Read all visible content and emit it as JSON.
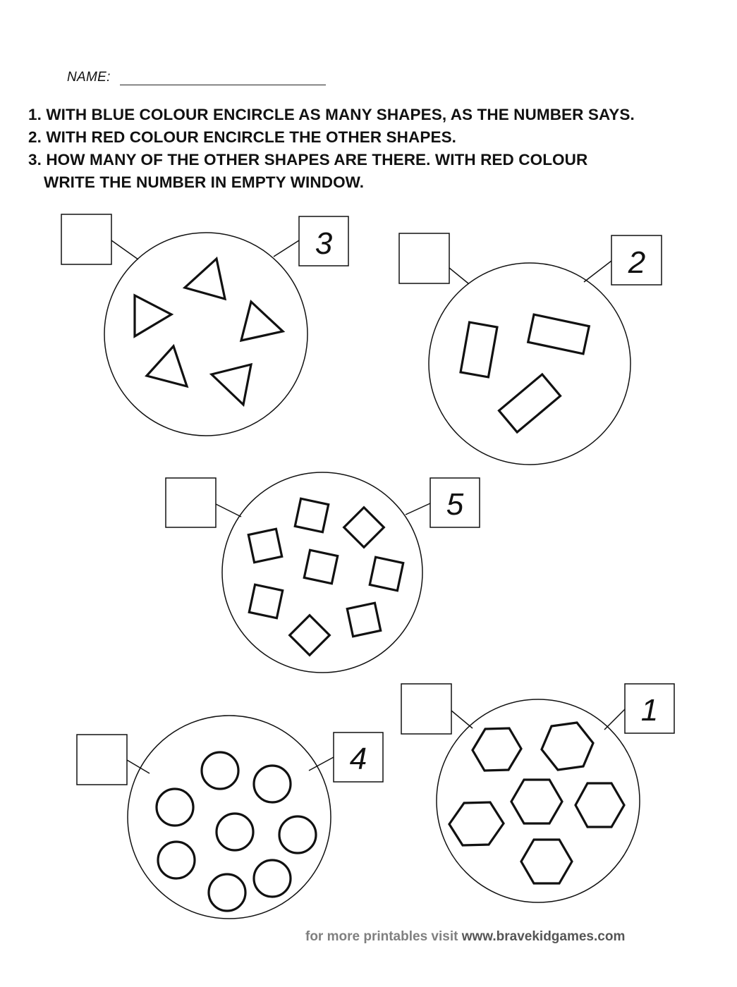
{
  "header": {
    "name_label": "NAME:"
  },
  "instructions": [
    "1. WITH BLUE COLOUR ENCIRCLE AS MANY SHAPES, AS THE NUMBER SAYS.",
    "2. WITH RED COLOUR ENCIRCLE THE OTHER SHAPES.",
    "3. HOW MANY OF THE OTHER SHAPES ARE THERE. WITH RED COLOUR",
    "WRITE THE NUMBER IN EMPTY WINDOW."
  ],
  "groups": [
    {
      "shape": "triangle",
      "count": 5,
      "number": "3"
    },
    {
      "shape": "rectangle",
      "count": 3,
      "number": "2"
    },
    {
      "shape": "square",
      "count": 8,
      "number": "5"
    },
    {
      "shape": "circle",
      "count": 8,
      "number": "4"
    },
    {
      "shape": "hexagon",
      "count": 6,
      "number": "1"
    }
  ],
  "footer": {
    "prefix": "for more printables visit",
    "url": "www.bravekidgames.com"
  }
}
